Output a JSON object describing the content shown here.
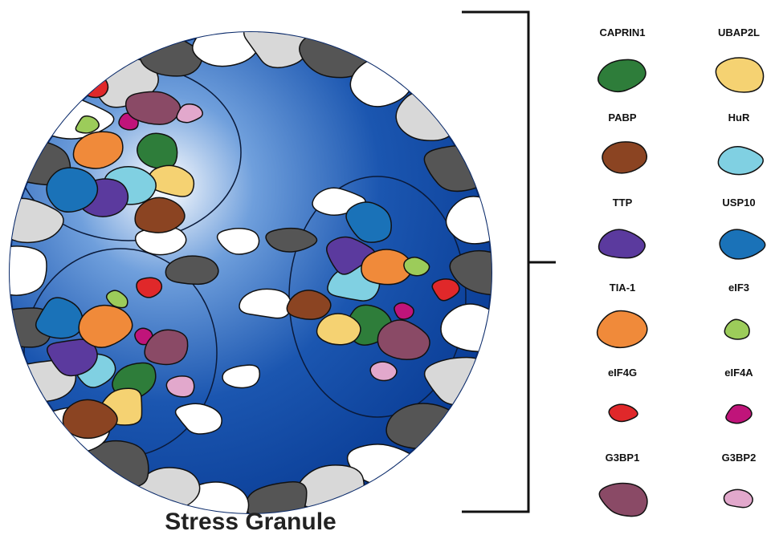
{
  "title": "Stress Granule",
  "legend": [
    {
      "label": "CAPRIN1",
      "color": "#2e7d3a"
    },
    {
      "label": "UBAP2L",
      "color": "#f5d272"
    },
    {
      "label": "PABP",
      "color": "#8b4422"
    },
    {
      "label": "HuR",
      "color": "#80d0e2"
    },
    {
      "label": "TTP",
      "color": "#5b3a9e"
    },
    {
      "label": "USP10",
      "color": "#1a72b8"
    },
    {
      "label": "TIA-1",
      "color": "#f08a3a"
    },
    {
      "label": "eIF3",
      "color": "#9ccc5a"
    },
    {
      "label": "eIF4G",
      "color": "#e0282a"
    },
    {
      "label": "eIF4A",
      "color": "#c0147a"
    },
    {
      "label": "G3BP1",
      "color": "#8a4a66"
    },
    {
      "label": "G3BP2",
      "color": "#e2a8cc"
    }
  ]
}
